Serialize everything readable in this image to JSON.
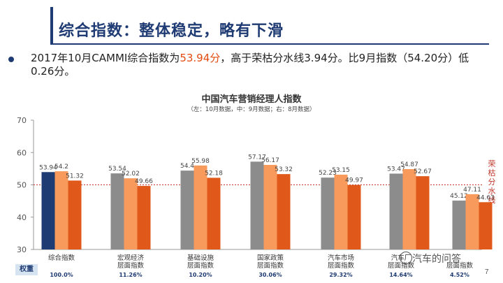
{
  "slide": {
    "title": "综合指数：整体稳定，略有下滑",
    "statement_prefix": "2017年10月CAMMI综合指数为",
    "statement_highlight": "53.94分",
    "statement_suffix": "，高于荣枯分水线3.94分。比9月指数（54.20分）低0.26分。",
    "weight_label": "权重",
    "watermark": "汽车的问答",
    "page_number": "7"
  },
  "colors": {
    "navy": "#1f3b73",
    "gray": "#8c8c8c",
    "light_orange": "#f79a5c",
    "dark_orange": "#e0581a",
    "threshold": "#c0392b"
  },
  "chart_data": {
    "type": "bar",
    "title": "中国汽车营销经理人指数",
    "subtitle": "（左：10月数据，中：9月数据；右：8月数据）",
    "categories": [
      [
        "综合指数"
      ],
      [
        "宏观经济",
        "层面指数"
      ],
      [
        "基础设施",
        "层面指数"
      ],
      [
        "国家政策",
        "层面指数"
      ],
      [
        "汽车市场",
        "层面指数"
      ],
      [
        "汽车厂",
        "层面指数"
      ],
      [
        "",
        "层面指数"
      ]
    ],
    "weights": [
      "100.0%",
      "11.26%",
      "10.20%",
      "30.06%",
      "29.32%",
      "14.64%",
      "4.52%"
    ],
    "series": [
      {
        "values": [
          53.94,
          53.54,
          54.4,
          57.17,
          52.23,
          53.47,
          45.12
        ]
      },
      {
        "values": [
          54.2,
          52.02,
          55.98,
          56.17,
          53.15,
          54.87,
          47.11
        ]
      },
      {
        "values": [
          51.32,
          49.66,
          52.18,
          53.32,
          49.97,
          52.67,
          44.63
        ]
      }
    ],
    "value_labels": [
      [
        "53.94",
        "54.2",
        "51.32"
      ],
      [
        "53.54",
        "52.02",
        "49.66"
      ],
      [
        "54.4",
        "55.98",
        "52.18"
      ],
      [
        "57.17",
        "56.17",
        "53.32"
      ],
      [
        "52.23",
        "53.15",
        "49.97"
      ],
      [
        "53.47",
        "54.87",
        "52.67"
      ],
      [
        "45.12",
        "47.11",
        "44.63"
      ]
    ],
    "threshold": 50,
    "threshold_label": "荣枯分水线",
    "ylim": [
      30,
      70
    ],
    "yticks": [
      "30",
      "40",
      "50",
      "60",
      "70"
    ],
    "grid": false
  }
}
